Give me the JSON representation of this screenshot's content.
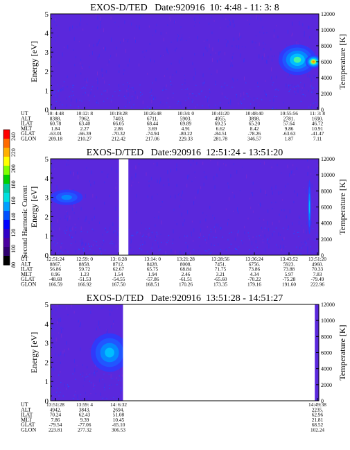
{
  "colorbar": {
    "label": "Second Harmonic Current",
    "ticks": [
      "240",
      "220",
      "200",
      "180",
      "160",
      "140",
      "120",
      "100",
      "80"
    ],
    "colors": [
      "#ff0000",
      "#ff6a00",
      "#ffb000",
      "#ffff00",
      "#80ff00",
      "#00d000",
      "#00c8a0",
      "#00e0e0",
      "#00a0ff",
      "#0050ff",
      "#0000ff",
      "#3000c8",
      "#4a00a0",
      "#300070",
      "#000000"
    ]
  },
  "panel_colors": {
    "background": "#5a28dc",
    "blue": "#2040ff",
    "cyan": "#00c8ff",
    "green": "#40ff80",
    "yellow": "#ffe000",
    "orange": "#ff8000"
  },
  "row_labels": [
    "UT",
    "ALT",
    "ILAT",
    "MLT",
    "GLAT",
    "GLON"
  ],
  "chart_data": [
    {
      "type": "heatmap",
      "title": "EXOS-D/TED   Date:920916  10: 4:48 - 11: 3: 8",
      "ylabel": "Energy [eV]",
      "y2label": "Temperature [K]",
      "ylim": [
        0,
        5
      ],
      "yticks": [
        "0",
        "1",
        "2",
        "3",
        "4",
        "5"
      ],
      "y2lim": [
        0,
        12000
      ],
      "y2ticks": [
        "0",
        "2000",
        "4000",
        "6000",
        "8000",
        "10000",
        "12000"
      ],
      "x_span": [
        0,
        1
      ],
      "data_gaps": [],
      "intensity_blobs": [
        {
          "x": 0.92,
          "energy": 2.6,
          "x_radius": 0.07,
          "e_radius": 0.8,
          "level": 4
        },
        {
          "x": 0.98,
          "energy": 2.5,
          "x_radius": 0.03,
          "e_radius": 0.35,
          "level": 6
        }
      ],
      "columns": [
        [
          "10: 4:48",
          "8388.",
          "60.78",
          "1.84",
          "-63.01",
          "209.18"
        ],
        [
          "10:12: 8",
          "7962.",
          "63.40",
          "2.27",
          "-66.39",
          "210.27"
        ],
        [
          "10:19:28",
          "7403.",
          "66.05",
          "2.86",
          "-70.32",
          "212.42"
        ],
        [
          "10:26:48",
          "6711.",
          "68.44",
          "3.69",
          "-74.94",
          "217.06"
        ],
        [
          "10:34: 0",
          "5903.",
          "69.89",
          "4.91",
          "-80.22",
          "229.33"
        ],
        [
          "10:41:20",
          "4955.",
          "69.25",
          "6.62",
          "-84.51",
          "281.78"
        ],
        [
          "10:48:40",
          "3898.",
          "65.20",
          "8.42",
          "-78.26",
          "346.57"
        ],
        [
          "10:55:56",
          "2781.",
          "57.64",
          "9.86",
          "-63.63",
          "1.87"
        ],
        [
          "11: 3: 8",
          "1690.",
          "46.72",
          "10.91",
          "-41.47",
          "7.11"
        ]
      ]
    },
    {
      "type": "heatmap",
      "title": "EXOS-D/TED   Date:920916  12:51:24 - 13:51:20",
      "ylabel": "Energy [eV]",
      "y2label": "Temperature [K]",
      "ylim": [
        0,
        5
      ],
      "yticks": [
        "0",
        "1",
        "2",
        "3",
        "4",
        "5"
      ],
      "y2lim": [
        0,
        12000
      ],
      "y2ticks": [
        "0",
        "2000",
        "4000",
        "6000",
        "8000",
        "10000",
        "12000"
      ],
      "x_span": [
        0,
        1
      ],
      "data_gaps": [
        [
          0.255,
          0.29
        ]
      ],
      "intensity_blobs": [
        {
          "x": 0.06,
          "energy": 3.0,
          "x_radius": 0.06,
          "e_radius": 0.4,
          "level": 2
        },
        {
          "x": 0.965,
          "energy": 2.5,
          "x_radius": 0.006,
          "e_radius": 1.4,
          "level": 3
        }
      ],
      "columns": [
        [
          "12:51:24",
          "8867.",
          "56.86",
          "0.96",
          "-48.68",
          "166.59"
        ],
        [
          "12:59: 0",
          "8858.",
          "59.72",
          "1.23",
          "-51.53",
          "166.92"
        ],
        [
          "13: 6:28",
          "8712.",
          "62.67",
          "1.54",
          "-54.55",
          "167.50"
        ],
        [
          "13:14: 0",
          "8428.",
          "65.75",
          "1.94",
          "-57.86",
          "168.51"
        ],
        [
          "13:21:28",
          "8008.",
          "68.84",
          "2.46",
          "-61.51",
          "170.26"
        ],
        [
          "13:28:56",
          "7451.",
          "71.75",
          "3.21",
          "-65.60",
          "173.35"
        ],
        [
          "13:36:24",
          "6756.",
          "73.86",
          "4.34",
          "-70.22",
          "179.16"
        ],
        [
          "13:43:52",
          "5923.",
          "73.88",
          "5.97",
          "-75.28",
          "191.60"
        ],
        [
          "13:51:20",
          "4960.",
          "70.33",
          "7.83",
          "-79.49",
          "222.96"
        ]
      ]
    },
    {
      "type": "heatmap",
      "title": "EXOS-D/TED   Date:920916  13:51:28 - 14:51:27",
      "ylabel": "Energy [eV]",
      "y2label": "Temperature [K]",
      "ylim": [
        0,
        5
      ],
      "yticks": [
        "0",
        "1",
        "2",
        "3",
        "4",
        "5"
      ],
      "y2lim": [
        0,
        12000
      ],
      "y2ticks": [
        "0",
        "2000",
        "4000",
        "6000",
        "8000",
        "10000",
        "12000"
      ],
      "x_span": [
        0,
        1
      ],
      "data_gaps": [
        [
          0.27,
          0.985
        ]
      ],
      "intensity_blobs": [
        {
          "x": 0.22,
          "energy": 2.5,
          "x_radius": 0.07,
          "e_radius": 1.0,
          "level": 3
        }
      ],
      "columns": [
        [
          "13:51:28",
          "4942.",
          "70.24",
          "7.86",
          "-79.54",
          "223.81"
        ],
        [
          "13:59: 4",
          "3843.",
          "62.43",
          "9.39",
          "-77.06",
          "277.32"
        ],
        [
          "14: 6:32",
          "2694.",
          "51.08",
          "10.45",
          "-65.10",
          "306.53"
        ],
        [
          "14:49:38",
          "2235.",
          "62.96",
          "21.81",
          "68.52",
          "102.24"
        ]
      ]
    }
  ]
}
